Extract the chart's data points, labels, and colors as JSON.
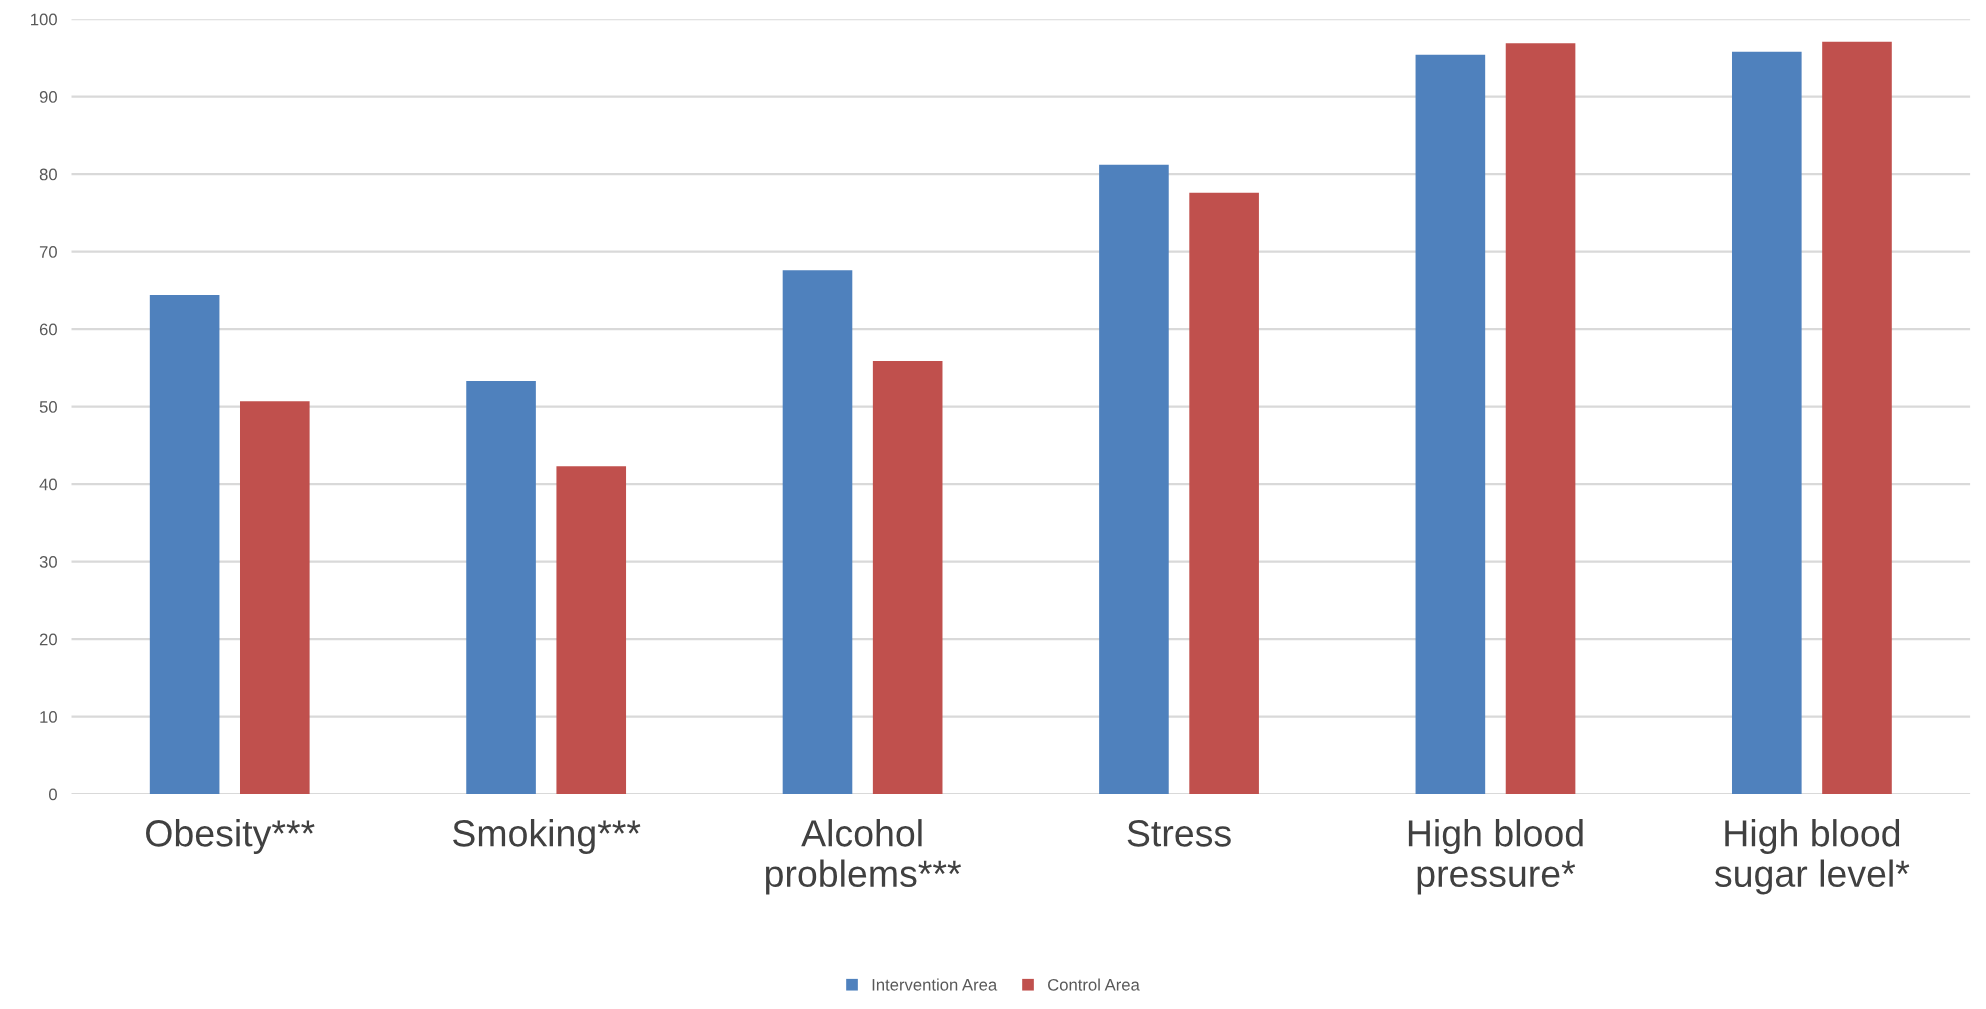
{
  "chart_data": {
    "type": "bar",
    "categories": [
      "Obesity***",
      "Smoking***",
      "Alcohol\nproblems***",
      "Stress",
      "High blood\npressure*",
      "High blood\nsugar level*"
    ],
    "series": [
      {
        "name": "Intervention Area",
        "color": "#4f81bd",
        "values": [
          64.4,
          53.3,
          67.6,
          81.2,
          95.4,
          95.8
        ]
      },
      {
        "name": "Control Area",
        "color": "#c0504d",
        "values": [
          50.7,
          42.3,
          55.9,
          77.6,
          96.9,
          97.1
        ]
      }
    ],
    "ylim": [
      0,
      100
    ],
    "yticks": [
      0,
      10,
      20,
      30,
      40,
      50,
      60,
      70,
      80,
      90,
      100
    ],
    "grid": "y",
    "legend": "bottom"
  }
}
